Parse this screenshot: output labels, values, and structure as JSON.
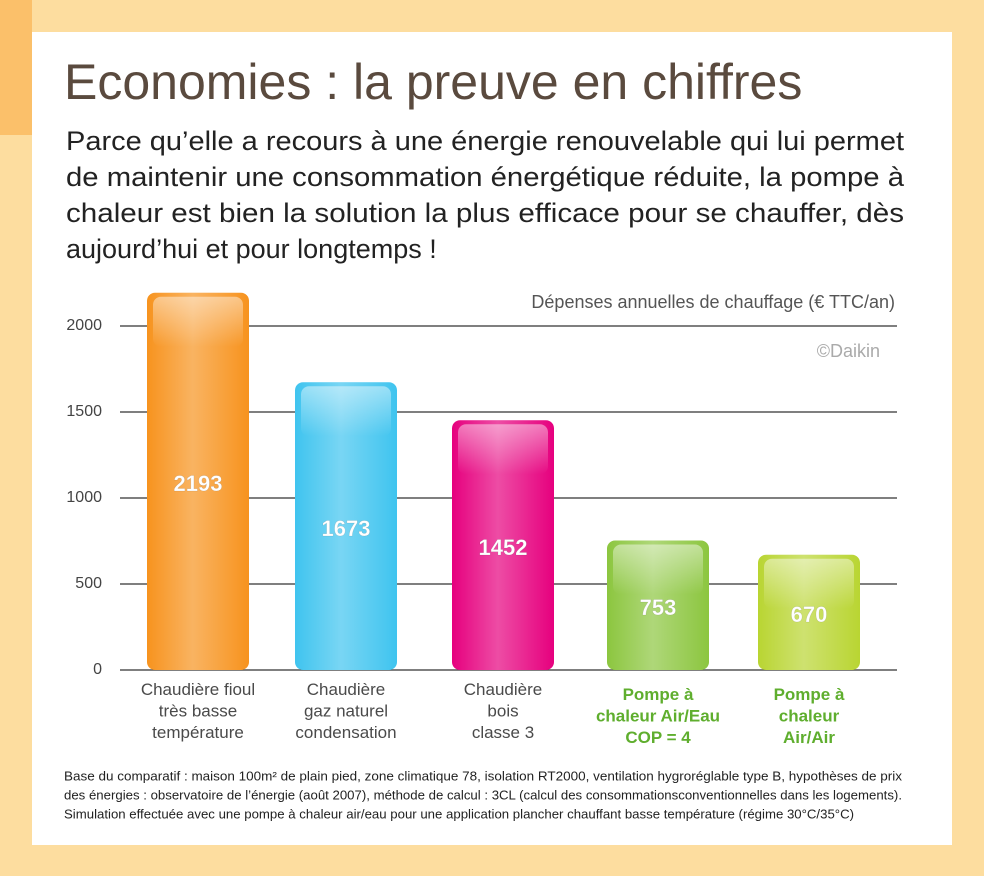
{
  "header": {
    "title": "Economies : la preuve en chiffres",
    "text": [
      "Parce qu’elle a recours à une énergie renouvelable qui lui permet",
      "de maintenir une consommation énergétique réduite, la pompe à",
      "chaleur est bien la solution la plus efficace pour se chauffer, dès",
      "aujourd’hui et pour longtemps !"
    ]
  },
  "chart_data": {
    "type": "bar",
    "title": "Dépenses annuelles de chauffage (€ TTC/an)",
    "source": "©Daikin",
    "categories": [
      "Chaudière fioul\ntrès basse\ntempérature",
      "Chaudière\ngaz naturel\ncondensation",
      "Chaudière\nbois\nclasse 3",
      "Pompe à\nchaleur Air/Eau\nCOP = 4",
      "Pompe à\nchaleur\nAir/Air"
    ],
    "values": [
      2193,
      1673,
      1452,
      753,
      670
    ],
    "colors": [
      "#f7931e",
      "#3fc4ef",
      "#e6007e",
      "#8cc63f",
      "#b9d532"
    ],
    "label_colors": [
      "#4a4a4a",
      "#4a4a4a",
      "#4a4a4a",
      "#5fae2e",
      "#5fae2e"
    ],
    "ylim": [
      0,
      2000
    ],
    "yticks": [
      0,
      500,
      1000,
      1500,
      2000
    ],
    "grid": true
  },
  "footnote": [
    "Base du comparatif : maison 100m² de plain pied, zone climatique 78, isolation RT2000, ventilation hygroréglable type B, hypothèses de prix",
    "des énergies : observatoire de l’énergie (août 2007), méthode de calcul : 3CL (calcul des consommationsconventionnelles dans les logements).",
    "Simulation effectuée avec une pompe à chaleur air/eau pour une application plancher chauffant basse température (régime 30°C/35°C)"
  ]
}
